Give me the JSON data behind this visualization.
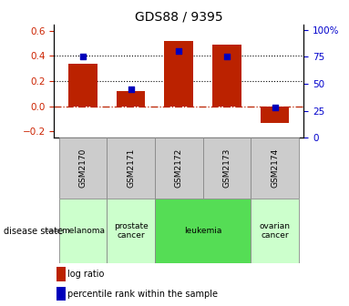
{
  "title": "GDS88 / 9395",
  "samples": [
    "GSM2170",
    "GSM2171",
    "GSM2172",
    "GSM2173",
    "GSM2174"
  ],
  "log_ratio": [
    0.34,
    0.12,
    0.52,
    0.49,
    -0.13
  ],
  "percentile_rank": [
    75,
    45,
    80,
    75,
    28
  ],
  "ylim_left": [
    -0.25,
    0.65
  ],
  "ylim_right": [
    0,
    105
  ],
  "yticks_left": [
    -0.2,
    0.0,
    0.2,
    0.4,
    0.6
  ],
  "yticks_right": [
    0,
    25,
    50,
    75,
    100
  ],
  "hlines": [
    0.4,
    0.2
  ],
  "bar_color": "#bb2200",
  "dot_color": "#0000bb",
  "disease_states": [
    {
      "label": "melanoma",
      "samples": [
        "GSM2170"
      ],
      "color": "#ccffcc"
    },
    {
      "label": "prostate\ncancer",
      "samples": [
        "GSM2171"
      ],
      "color": "#ccffcc"
    },
    {
      "label": "leukemia",
      "samples": [
        "GSM2172",
        "GSM2173"
      ],
      "color": "#55dd55"
    },
    {
      "label": "ovarian\ncancer",
      "samples": [
        "GSM2174"
      ],
      "color": "#ccffcc"
    }
  ],
  "legend_bar_label": "log ratio",
  "legend_dot_label": "percentile rank within the sample",
  "title_fontsize": 10,
  "axis_label_color_left": "#cc2200",
  "axis_label_color_right": "#0000cc",
  "tick_fontsize": 7.5,
  "bar_width": 0.6,
  "melanoma_color": "#ddffdd",
  "leukemia_color": "#44dd44",
  "light_green": "#ccffcc"
}
